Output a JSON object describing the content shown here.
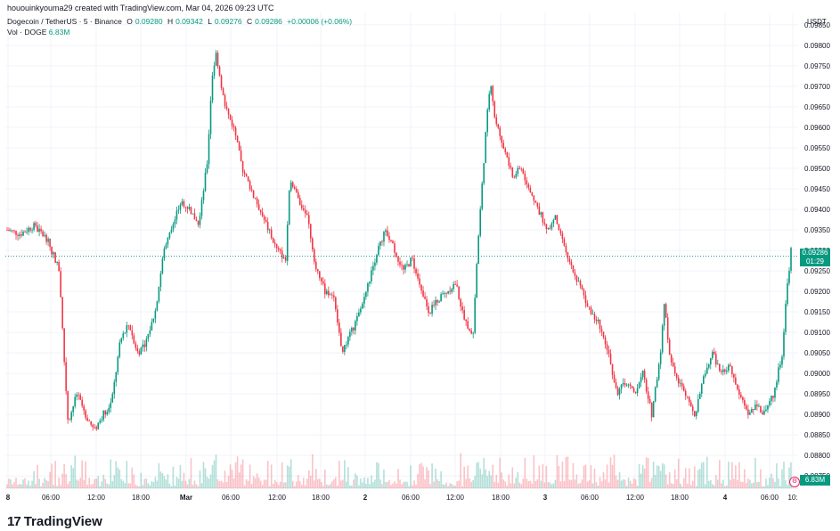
{
  "header": {
    "publisher_line": "hououinkyouma29 created with TradingView.com, Mar 04, 2026 09:23 UTC"
  },
  "legend": {
    "symbol": "Dogecoin / TetherUS · 5 · Binance",
    "open_label": "O",
    "open": "0.09280",
    "high_label": "H",
    "high": "0.09342",
    "low_label": "L",
    "low": "0.09276",
    "close_label": "C",
    "close": "0.09286",
    "change": "+0.00006 (+0.06%)",
    "volume_label": "Vol · DOGE",
    "volume": "6.83M"
  },
  "price_scale": {
    "currency": "USDT",
    "ticks": [
      "0.09850",
      "0.09800",
      "0.09750",
      "0.09700",
      "0.09650",
      "0.09600",
      "0.09550",
      "0.09500",
      "0.09450",
      "0.09400",
      "0.09350",
      "0.09300",
      "0.09250",
      "0.09200",
      "0.09150",
      "0.09100",
      "0.09050",
      "0.09000",
      "0.08950",
      "0.08900",
      "0.08850",
      "0.08800",
      "0.08750"
    ],
    "last_price": "0.09286",
    "countdown": "01:29",
    "volume_tag": "6.83M"
  },
  "time_axis": {
    "labels": [
      "8",
      "06:00",
      "12:00",
      "18:00",
      "Mar",
      "06:00",
      "12:00",
      "18:00",
      "2",
      "06:00",
      "12:00",
      "18:00",
      "3",
      "06:00",
      "12:00",
      "18:00",
      "4",
      "06:00",
      "10:"
    ]
  },
  "colors": {
    "up": "#089981",
    "down": "#f23645",
    "grid": "#f0f3fa",
    "text": "#131722"
  },
  "branding": {
    "logo_mark": "17",
    "logo_text": "TradingView"
  },
  "chart_data": {
    "type": "candlestick",
    "symbol": "DOGE/USDT",
    "interval": "5",
    "y_range": [
      0.0872,
      0.0988
    ],
    "x_labels": [
      "8",
      "06:00",
      "12:00",
      "18:00",
      "Mar",
      "06:00",
      "12:00",
      "18:00",
      "2",
      "06:00",
      "12:00",
      "18:00",
      "3",
      "06:00",
      "12:00",
      "18:00",
      "4",
      "06:00",
      "10:"
    ],
    "close_path": [
      [
        0,
        0.0935
      ],
      [
        3,
        0.0934
      ],
      [
        6,
        0.0936
      ],
      [
        9,
        0.0933
      ],
      [
        11,
        0.0928
      ],
      [
        12,
        0.0925
      ],
      [
        13,
        0.0905
      ],
      [
        14,
        0.0888
      ],
      [
        16,
        0.0895
      ],
      [
        18,
        0.089
      ],
      [
        20,
        0.0886
      ],
      [
        22,
        0.089
      ],
      [
        24,
        0.0893
      ],
      [
        26,
        0.0908
      ],
      [
        28,
        0.0912
      ],
      [
        30,
        0.0905
      ],
      [
        32,
        0.0908
      ],
      [
        34,
        0.0915
      ],
      [
        36,
        0.093
      ],
      [
        38,
        0.0936
      ],
      [
        40,
        0.0942
      ],
      [
        42,
        0.094
      ],
      [
        44,
        0.0936
      ],
      [
        46,
        0.0952
      ],
      [
        47,
        0.0972
      ],
      [
        48,
        0.0978
      ],
      [
        50,
        0.0965
      ],
      [
        52,
        0.096
      ],
      [
        54,
        0.095
      ],
      [
        56,
        0.0945
      ],
      [
        58,
        0.094
      ],
      [
        60,
        0.0935
      ],
      [
        62,
        0.093
      ],
      [
        64,
        0.0928
      ],
      [
        65,
        0.0948
      ],
      [
        67,
        0.0942
      ],
      [
        69,
        0.0938
      ],
      [
        71,
        0.0925
      ],
      [
        73,
        0.092
      ],
      [
        75,
        0.0918
      ],
      [
        77,
        0.0905
      ],
      [
        79,
        0.091
      ],
      [
        81,
        0.0915
      ],
      [
        83,
        0.0922
      ],
      [
        85,
        0.093
      ],
      [
        87,
        0.0935
      ],
      [
        89,
        0.093
      ],
      [
        91,
        0.0925
      ],
      [
        93,
        0.0928
      ],
      [
        95,
        0.092
      ],
      [
        97,
        0.0915
      ],
      [
        99,
        0.0918
      ],
      [
        101,
        0.092
      ],
      [
        103,
        0.0922
      ],
      [
        105,
        0.0913
      ],
      [
        107,
        0.091
      ],
      [
        108,
        0.093
      ],
      [
        110,
        0.096
      ],
      [
        111,
        0.0972
      ],
      [
        112,
        0.0962
      ],
      [
        114,
        0.0955
      ],
      [
        116,
        0.0948
      ],
      [
        118,
        0.095
      ],
      [
        120,
        0.0945
      ],
      [
        122,
        0.094
      ],
      [
        124,
        0.0935
      ],
      [
        126,
        0.0938
      ],
      [
        128,
        0.093
      ],
      [
        130,
        0.0925
      ],
      [
        132,
        0.092
      ],
      [
        134,
        0.0915
      ],
      [
        136,
        0.0912
      ],
      [
        138,
        0.0905
      ],
      [
        140,
        0.0895
      ],
      [
        142,
        0.0898
      ],
      [
        144,
        0.0895
      ],
      [
        146,
        0.09
      ],
      [
        148,
        0.089
      ],
      [
        150,
        0.0905
      ],
      [
        151,
        0.0918
      ],
      [
        152,
        0.0905
      ],
      [
        154,
        0.0898
      ],
      [
        156,
        0.0895
      ],
      [
        158,
        0.089
      ],
      [
        160,
        0.09
      ],
      [
        162,
        0.0905
      ],
      [
        164,
        0.09
      ],
      [
        166,
        0.0902
      ],
      [
        168,
        0.0895
      ],
      [
        170,
        0.089
      ],
      [
        172,
        0.0892
      ],
      [
        174,
        0.089
      ],
      [
        176,
        0.0895
      ],
      [
        178,
        0.0905
      ],
      [
        179,
        0.092
      ],
      [
        180,
        0.093
      ]
    ]
  }
}
